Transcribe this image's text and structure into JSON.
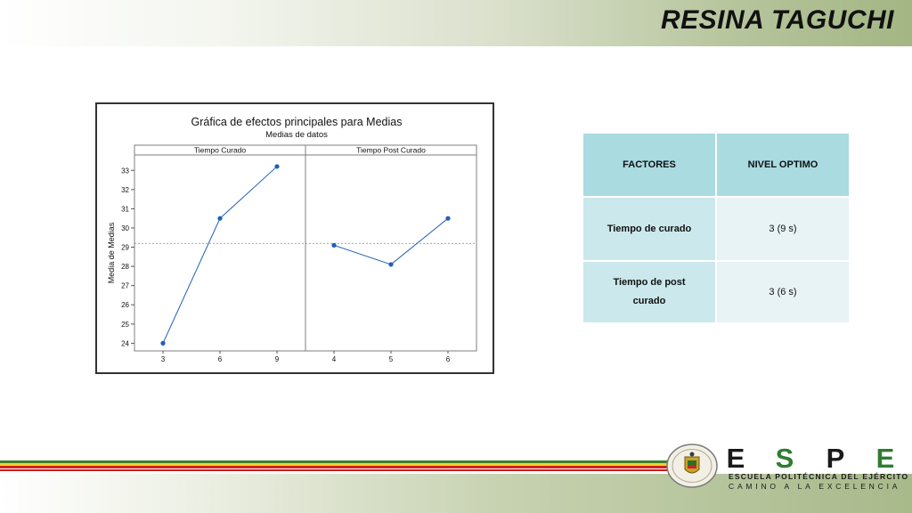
{
  "slide": {
    "title": "RESINA TAGUCHI"
  },
  "chart_data": {
    "type": "line",
    "title": "Gráfica de efectos principales para Medias",
    "subtitle": "Medias de datos",
    "ylabel": "Media de Medias",
    "ylim": [
      23.6,
      33.8
    ],
    "yticks": [
      24,
      25,
      26,
      27,
      28,
      29,
      30,
      31,
      32,
      33
    ],
    "grid": false,
    "reference_line": 29.2,
    "panels": [
      {
        "name": "Tiempo Curado",
        "categories": [
          "3",
          "6",
          "9"
        ],
        "values": [
          24.0,
          30.5,
          33.2
        ]
      },
      {
        "name": "Tiempo Post Curado",
        "categories": [
          "4",
          "5",
          "6"
        ],
        "values": [
          29.1,
          28.1,
          30.5
        ]
      }
    ],
    "colors": {
      "series": "#1f5fb8",
      "frame": "#7f7f7f",
      "reference": "#888888"
    }
  },
  "table": {
    "headers": [
      "FACTORES",
      "NIVEL OPTIMO"
    ],
    "rows": [
      {
        "factor_lines": [
          "Tiempo de curado"
        ],
        "nivel": "3 (9 s)"
      },
      {
        "factor_lines": [
          "Tiempo de post",
          "curado"
        ],
        "nivel": "3 (6 s)"
      }
    ],
    "colors": {
      "header": "#a9dbe0",
      "factor": "#cbe8ec",
      "value": "#e7f3f5"
    }
  },
  "logo": {
    "letters": [
      "E",
      "S",
      "P",
      "E"
    ],
    "line1": "ESCUELA POLITÉCNICA DEL EJÉRCITO",
    "line2": "CAMINO A LA EXCELENCIA",
    "seal_icon": "espe-seal-icon",
    "colors": {
      "green": "#2e7d32",
      "dark": "#1a1a1a"
    }
  }
}
